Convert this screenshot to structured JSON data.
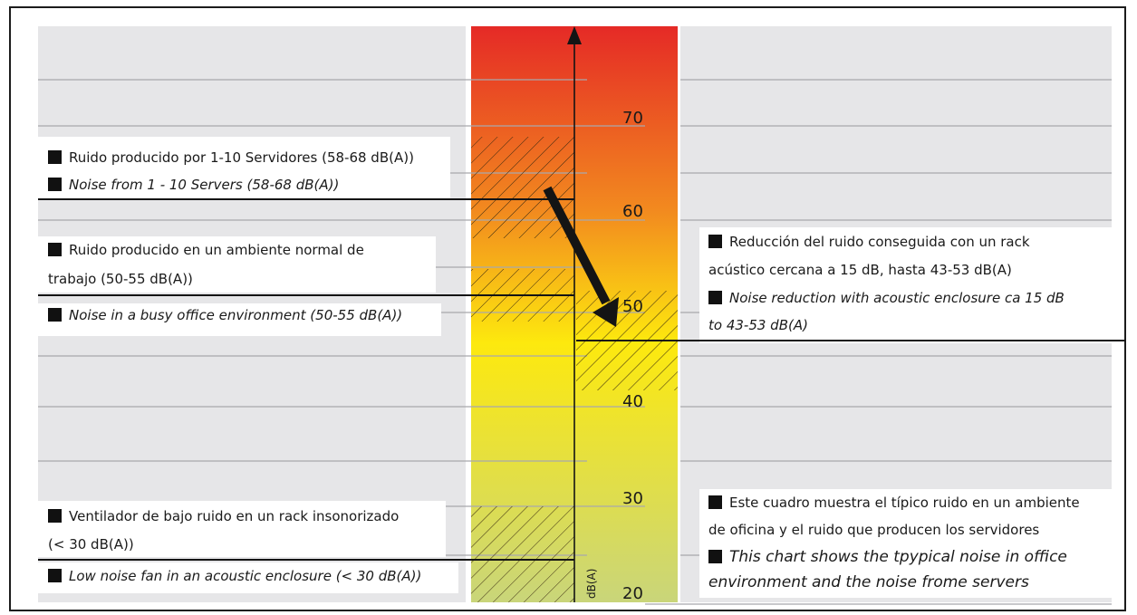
{
  "diagram": {
    "axis": {
      "unit": "dB(A)",
      "ticks": [
        "70",
        "60",
        "50",
        "40",
        "30",
        "20"
      ]
    },
    "gradient_colors": [
      "#e52a26",
      "#f28a1f",
      "#fde90e",
      "#c9d57a"
    ],
    "labels": {
      "servers_es": "Ruido producido por 1-10 Servidores (58-68 dB(A))",
      "servers_en": "Noise from 1 - 10 Servers (58-68 dB(A))",
      "office_es_line1": "Ruido producido en un ambiente normal de",
      "office_es_line2": "trabajo (50-55 dB(A))",
      "office_en": "Noise in a busy office environment (50-55 dB(A))",
      "fan_es_line1": "Ventilador de bajo ruido en un rack insonorizado",
      "fan_es_line2": "(< 30 dB(A))",
      "fan_en": "Low noise fan in an acoustic enclosure (< 30 dB(A))",
      "reduction_es_line1": "Reducción del ruido conseguida con un rack",
      "reduction_es_line2": "acústico cercana a 15 dB, hasta 43-53 dB(A)",
      "reduction_en_line1": "Noise reduction with acoustic enclosure ca 15 dB",
      "reduction_en_line2": "to 43-53 dB(A)",
      "note_es_line1": "Este cuadro muestra el típico ruido en un ambiente",
      "note_es_line2": "de oficina y el ruido que producen los servidores",
      "note_en_line1": "This chart shows the tpypical noise in office",
      "note_en_line2": "environment and the noise frome servers"
    }
  }
}
